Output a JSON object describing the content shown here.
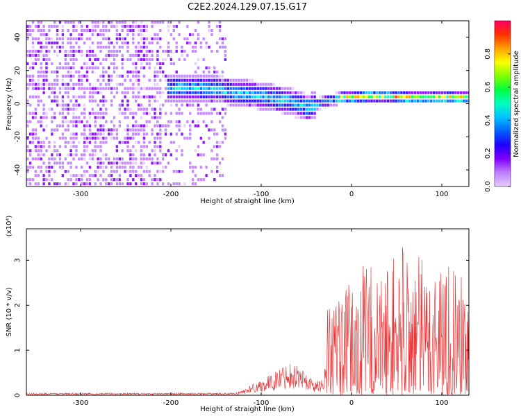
{
  "chart_data": [
    {
      "type": "heatmap",
      "title": "C2E2.2024.129.07.15.G17",
      "xlabel": "Height of straight line (km)",
      "ylabel": "Frequency (Hz)",
      "xlim": [
        -360,
        130
      ],
      "ylim": [
        -50,
        50
      ],
      "x_ticks": [
        -300,
        -200,
        -100,
        0,
        100
      ],
      "y_ticks": [
        -40,
        -20,
        0,
        20,
        40
      ],
      "colorbar": {
        "label": "Normalized spectral amplitude",
        "range": [
          0,
          1
        ],
        "ticks": [
          "0.0",
          "0.2",
          "0.4",
          "0.6",
          "0.8"
        ],
        "colors": [
          "#e6ccff",
          "#c080ff",
          "#8000ff",
          "#2000ff",
          "#0060ff",
          "#00c0ff",
          "#00ffc0",
          "#00ff40",
          "#80ff00",
          "#ffff00",
          "#ffa000",
          "#ff3000",
          "#ff0060"
        ]
      },
      "ridge": {
        "x": [
          -205,
          -180,
          -150,
          -130,
          -110,
          -90,
          -70,
          -50,
          -40,
          -30,
          -20,
          -10,
          0,
          20,
          40,
          60,
          80,
          100,
          130
        ],
        "y": [
          8,
          8,
          7,
          5,
          4,
          2,
          0,
          -4,
          -2,
          0,
          1,
          2,
          2,
          3,
          3,
          2,
          2,
          2,
          2
        ]
      },
      "grid": false
    },
    {
      "type": "line",
      "xlabel": "Height of straight line (km)",
      "ylabel": "SNR (10 * v/v)",
      "multiplier": "(x10⁴)",
      "xlim": [
        -360,
        130
      ],
      "ylim": [
        0,
        3.7
      ],
      "x_ticks": [
        -300,
        -200,
        -100,
        0,
        100
      ],
      "y_ticks": [
        0,
        1,
        2,
        3
      ],
      "color": "#e8393a",
      "envelope": {
        "x": [
          -360,
          -130,
          -120,
          -110,
          -100,
          -90,
          -80,
          -70,
          -60,
          -50,
          -40,
          -30,
          -28,
          -20,
          -10,
          0,
          10,
          20,
          30,
          40,
          50,
          60,
          70,
          80,
          90,
          100,
          110,
          120,
          130
        ],
        "y": [
          0.05,
          0.05,
          0.12,
          0.25,
          0.35,
          0.45,
          0.6,
          0.75,
          0.7,
          0.5,
          0.3,
          0.4,
          2.0,
          2.4,
          2.2,
          2.6,
          2.8,
          3.2,
          2.6,
          3.0,
          3.3,
          3.5,
          3.3,
          3.0,
          3.1,
          3.2,
          3.0,
          2.6,
          3.0
        ]
      },
      "grid": false
    }
  ]
}
